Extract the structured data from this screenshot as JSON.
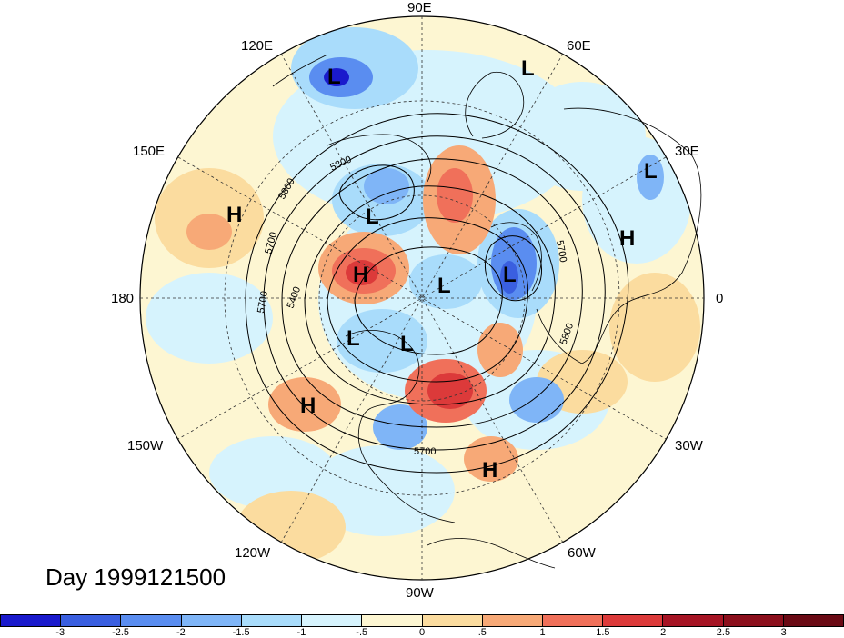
{
  "map": {
    "lon_labels": {
      "e90": "90E",
      "e120": "120E",
      "e60": "60E",
      "e150": "150E",
      "e30": "30E",
      "lon180": "180",
      "lon0": "0",
      "w150": "150W",
      "w30": "30W",
      "w120": "120W",
      "w60": "60W",
      "w90": "90W"
    },
    "pressure_centers": [
      {
        "id": "L1",
        "label": "L"
      },
      {
        "id": "L2",
        "label": "L"
      },
      {
        "id": "L3",
        "label": "L"
      },
      {
        "id": "L4",
        "label": "L"
      },
      {
        "id": "L5",
        "label": "L"
      },
      {
        "id": "L6",
        "label": "L"
      },
      {
        "id": "L7",
        "label": "L"
      },
      {
        "id": "L8",
        "label": "L"
      },
      {
        "id": "H1",
        "label": "H"
      },
      {
        "id": "H2",
        "label": "H"
      },
      {
        "id": "H3",
        "label": "H"
      },
      {
        "id": "H4",
        "label": "H"
      },
      {
        "id": "H5",
        "label": "H"
      }
    ],
    "contour_labels": [
      "5800",
      "5800",
      "5700",
      "5700",
      "5400",
      "5700",
      "5800",
      "5700"
    ],
    "colors": {
      "neg3": "#1a1acc",
      "neg2_5": "#3a5fe0",
      "neg2": "#5a8df0",
      "neg1_5": "#7fb5f7",
      "neg1": "#a9dcfb",
      "neg0_5": "#d6f3fd",
      "pos0_5": "#fdf6d2",
      "pos1": "#fbdc9f",
      "pos1_5": "#f7a977",
      "pos2": "#f0705a",
      "pos2_5": "#dc3a3a",
      "pos3": "#a61424"
    }
  },
  "day_label": "Day 1999121500",
  "colorbar": {
    "ticks": [
      "-3",
      "-2.5",
      "-2",
      "-1.5",
      "-1",
      "-.5",
      "0",
      ".5",
      "1",
      "1.5",
      "2",
      "2.5",
      "3"
    ],
    "colors": [
      "#1a1acc",
      "#3a5fe0",
      "#5a8df0",
      "#7fb5f7",
      "#a9dcfb",
      "#d6f3fd",
      "#fdf6d2",
      "#fbdc9f",
      "#f7a977",
      "#f0705a",
      "#dc3a3a",
      "#a61424",
      "#8b0f1c",
      "#6a0a14"
    ]
  }
}
